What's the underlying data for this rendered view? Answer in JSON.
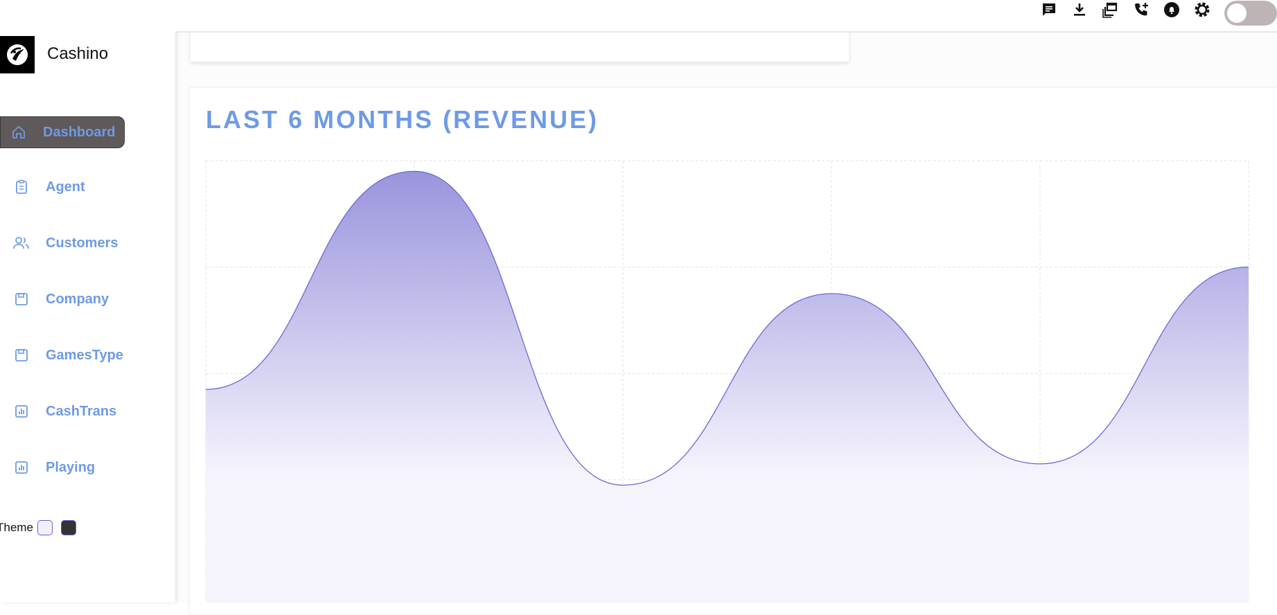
{
  "brand": {
    "name": "Cashino"
  },
  "sidebar": {
    "items": [
      {
        "label": "Dashboard",
        "icon": "home-icon",
        "active": true
      },
      {
        "label": "Agent",
        "icon": "clipboard-icon",
        "active": false
      },
      {
        "label": "Customers",
        "icon": "users-icon",
        "active": false
      },
      {
        "label": "Company",
        "icon": "save-icon",
        "active": false
      },
      {
        "label": "GamesType",
        "icon": "save-icon",
        "active": false
      },
      {
        "label": "CashTrans",
        "icon": "bar-chart-icon",
        "active": false
      },
      {
        "label": "Playing",
        "icon": "bar-chart-icon",
        "active": false
      }
    ],
    "theme_label": "Theme"
  },
  "topbar": {
    "icons": [
      "chat-icon",
      "download-icon",
      "copy-window-icon",
      "phone-add-icon",
      "bell-icon",
      "settings-icon"
    ],
    "toggle_on": false
  },
  "colors": {
    "accent": "#6e9ae6",
    "active_bg": "#5f5959",
    "area_top": "#9a94dd",
    "area_bottom": "#f5f4fc",
    "line": "#6d67d4"
  },
  "chart": {
    "title": "LAST 6 MONTHS (REVENUE)"
  },
  "chart_data": {
    "type": "area",
    "title": "LAST 6 MONTHS (REVENUE)",
    "x": [
      0,
      1,
      2,
      3,
      4,
      5
    ],
    "series": [
      {
        "values": [
          57,
          98,
          39,
          75,
          43,
          80
        ]
      }
    ],
    "xlabel": "",
    "ylabel": "",
    "ylim": [
      0,
      100
    ],
    "grid": true,
    "grid_style": "dashed",
    "curve": "smooth"
  }
}
